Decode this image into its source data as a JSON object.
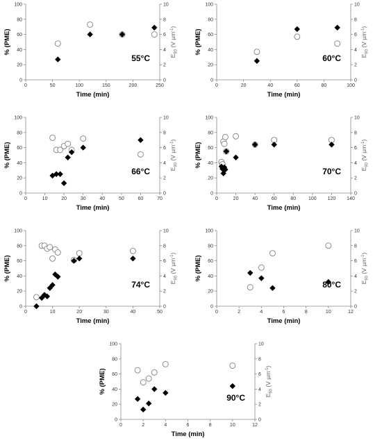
{
  "chart_data": [
    {
      "type": "scatter",
      "temperature": "55°C",
      "xlabel": "Time (min)",
      "ylabel_left": "% (PME)",
      "ylabel_right_main": "E",
      "ylabel_right_sub": "90",
      "ylabel_right_tail": " (V µm",
      "ylabel_right_sup": "-1",
      "ylabel_right_end": ")",
      "xlim": [
        0,
        250
      ],
      "xticks": [
        "0",
        "50",
        "100",
        "150",
        "200",
        "250"
      ],
      "ylim_left": [
        0,
        100
      ],
      "yticks_left": [
        "0",
        "20",
        "40",
        "60",
        "80",
        "100"
      ],
      "ylim_right": [
        0,
        10
      ],
      "yticks_right": [
        "0",
        "2",
        "4",
        "6",
        "8",
        "10"
      ],
      "grid": false,
      "series": [
        {
          "marker": "diamond-filled",
          "axis": "left",
          "points": [
            [
              60,
              27
            ],
            [
              120,
              60
            ],
            [
              180,
              60
            ],
            [
              240,
              69
            ]
          ]
        },
        {
          "marker": "circle-open",
          "axis": "right",
          "points": [
            [
              60,
              4.8
            ],
            [
              120,
              7.3
            ],
            [
              180,
              6.0
            ],
            [
              240,
              6.0
            ]
          ]
        }
      ]
    },
    {
      "type": "scatter",
      "temperature": "60°C",
      "xlabel": "Time (min)",
      "ylabel_left": "% (PME)",
      "ylabel_right_main": "E",
      "ylabel_right_sub": "90",
      "ylabel_right_tail": " (V µm",
      "ylabel_right_sup": "-1",
      "ylabel_right_end": ")",
      "xlim": [
        0,
        100
      ],
      "xticks": [
        "0",
        "20",
        "40",
        "60",
        "80",
        "100"
      ],
      "ylim_left": [
        0,
        100
      ],
      "yticks_left": [
        "0",
        "20",
        "40",
        "60",
        "80",
        "100"
      ],
      "ylim_right": [
        0,
        10
      ],
      "yticks_right": [
        "0",
        "2",
        "4",
        "6",
        "8",
        "10"
      ],
      "grid": false,
      "series": [
        {
          "marker": "diamond-filled",
          "axis": "left",
          "points": [
            [
              30,
              25
            ],
            [
              60,
              67
            ],
            [
              90,
              69
            ]
          ]
        },
        {
          "marker": "circle-open",
          "axis": "right",
          "points": [
            [
              30,
              3.7
            ],
            [
              60,
              5.7
            ],
            [
              90,
              4.8
            ]
          ]
        }
      ]
    },
    {
      "type": "scatter",
      "temperature": "66°C",
      "xlabel": "Time (min)",
      "ylabel_left": "% (PME)",
      "ylabel_right_main": "E",
      "ylabel_right_sub": "90",
      "ylabel_right_tail": " (V µm",
      "ylabel_right_sup": "-1",
      "ylabel_right_end": ")",
      "xlim": [
        0,
        70
      ],
      "xticks": [
        "0",
        "10",
        "20",
        "30",
        "40",
        "50",
        "60",
        "70"
      ],
      "ylim_left": [
        0,
        100
      ],
      "yticks_left": [
        "0",
        "20",
        "40",
        "60",
        "80",
        "100"
      ],
      "ylim_right": [
        0,
        10
      ],
      "yticks_right": [
        "0",
        "2",
        "4",
        "6",
        "8",
        "10"
      ],
      "grid": false,
      "series": [
        {
          "marker": "diamond-filled",
          "axis": "left",
          "points": [
            [
              14,
              23
            ],
            [
              16,
              25
            ],
            [
              18,
              25
            ],
            [
              20,
              13
            ],
            [
              22,
              47
            ],
            [
              24,
              54
            ],
            [
              30,
              60
            ],
            [
              60,
              70
            ]
          ]
        },
        {
          "marker": "circle-open",
          "axis": "right",
          "points": [
            [
              14,
              7.3
            ],
            [
              16,
              5.7
            ],
            [
              18,
              5.7
            ],
            [
              20,
              6.2
            ],
            [
              22,
              6.5
            ],
            [
              24,
              5.7
            ],
            [
              30,
              7.2
            ],
            [
              60,
              5.1
            ]
          ]
        }
      ]
    },
    {
      "type": "scatter",
      "temperature": "70°C",
      "xlabel": "Time (min)",
      "ylabel_left": "% (PME)",
      "ylabel_right_main": "E",
      "ylabel_right_sub": "90",
      "ylabel_right_tail": " (V µm",
      "ylabel_right_sup": "-1",
      "ylabel_right_end": ")",
      "xlim": [
        0,
        140
      ],
      "xticks": [
        "0",
        "20",
        "40",
        "60",
        "80",
        "100",
        "120",
        "140"
      ],
      "ylim_left": [
        0,
        100
      ],
      "yticks_left": [
        "0",
        "20",
        "40",
        "60",
        "80",
        "100"
      ],
      "ylim_right": [
        0,
        10
      ],
      "yticks_right": [
        "0",
        "2",
        "4",
        "6",
        "8",
        "10"
      ],
      "grid": false,
      "series": [
        {
          "marker": "diamond-filled",
          "axis": "left",
          "points": [
            [
              5,
              35
            ],
            [
              6,
              32
            ],
            [
              7,
              26
            ],
            [
              8,
              34
            ],
            [
              9,
              31
            ],
            [
              10,
              55
            ],
            [
              20,
              47
            ],
            [
              40,
              64
            ],
            [
              60,
              64
            ],
            [
              120,
              64
            ]
          ]
        },
        {
          "marker": "circle-open",
          "axis": "right",
          "points": [
            [
              5,
              4.1
            ],
            [
              6,
              3.8
            ],
            [
              7,
              6.8
            ],
            [
              8,
              6.5
            ],
            [
              9,
              7.4
            ],
            [
              10,
              5.5
            ],
            [
              20,
              7.5
            ],
            [
              40,
              6.4
            ],
            [
              60,
              7.0
            ],
            [
              120,
              7.0
            ]
          ]
        }
      ]
    },
    {
      "type": "scatter",
      "temperature": "74°C",
      "xlabel": "Time (min)",
      "ylabel_left": "% (PME)",
      "ylabel_right_main": "E",
      "ylabel_right_sub": "90",
      "ylabel_right_tail": " (V µm",
      "ylabel_right_sup": "-1",
      "ylabel_right_end": ")",
      "xlim": [
        0,
        50
      ],
      "xticks": [
        "0",
        "10",
        "20",
        "30",
        "40",
        "50"
      ],
      "ylim_left": [
        0,
        100
      ],
      "yticks_left": [
        "0",
        "20",
        "40",
        "60",
        "80",
        "100"
      ],
      "ylim_right": [
        0,
        10
      ],
      "yticks_right": [
        "0",
        "2",
        "4",
        "6",
        "8",
        "10"
      ],
      "grid": false,
      "series": [
        {
          "marker": "diamond-filled",
          "axis": "left",
          "points": [
            [
              4,
              0
            ],
            [
              6,
              11
            ],
            [
              7,
              15
            ],
            [
              8,
              13
            ],
            [
              9,
              24
            ],
            [
              10,
              28
            ],
            [
              11,
              42
            ],
            [
              12,
              39
            ],
            [
              18,
              60
            ],
            [
              20,
              63
            ],
            [
              40,
              63
            ]
          ]
        },
        {
          "marker": "circle-open",
          "axis": "right",
          "points": [
            [
              4,
              1.2
            ],
            [
              6,
              8.0
            ],
            [
              7,
              8.0
            ],
            [
              8,
              7.6
            ],
            [
              9,
              7.8
            ],
            [
              10,
              6.3
            ],
            [
              11,
              7.5
            ],
            [
              12,
              7.1
            ],
            [
              18,
              6.1
            ],
            [
              20,
              7.0
            ],
            [
              40,
              7.3
            ]
          ]
        }
      ]
    },
    {
      "type": "scatter",
      "temperature": "80°C",
      "xlabel": "Time (min)",
      "ylabel_left": "% (PME)",
      "ylabel_right_main": "E",
      "ylabel_right_sub": "90",
      "ylabel_right_tail": " (V µm",
      "ylabel_right_sup": "-1",
      "ylabel_right_end": ")",
      "xlim": [
        0,
        12
      ],
      "xticks": [
        "0",
        "2",
        "4",
        "6",
        "8",
        "10",
        "12"
      ],
      "ylim_left": [
        0,
        100
      ],
      "yticks_left": [
        "0",
        "20",
        "40",
        "60",
        "80",
        "100"
      ],
      "ylim_right": [
        0,
        10
      ],
      "yticks_right": [
        "0",
        "2",
        "4",
        "6",
        "8",
        "10"
      ],
      "grid": false,
      "series": [
        {
          "marker": "diamond-filled",
          "axis": "left",
          "points": [
            [
              3,
              44
            ],
            [
              4,
              37
            ],
            [
              5,
              24
            ],
            [
              10,
              32
            ]
          ]
        },
        {
          "marker": "circle-open",
          "axis": "right",
          "points": [
            [
              3,
              2.5
            ],
            [
              4,
              5.1
            ],
            [
              5,
              7.0
            ],
            [
              10,
              8.0
            ]
          ]
        }
      ]
    },
    {
      "type": "scatter",
      "temperature": "90°C",
      "xlabel": "Time (min)",
      "ylabel_left": "% (PME)",
      "ylabel_right_main": "E",
      "ylabel_right_sub": "90",
      "ylabel_right_tail": " (V µm",
      "ylabel_right_sup": "-1",
      "ylabel_right_end": ")",
      "xlim": [
        0,
        12
      ],
      "xticks": [
        "0",
        "2",
        "4",
        "6",
        "8",
        "10",
        "12"
      ],
      "ylim_left": [
        0,
        100
      ],
      "yticks_left": [
        "0",
        "20",
        "40",
        "60",
        "80",
        "100"
      ],
      "ylim_right": [
        0,
        10
      ],
      "yticks_right": [
        "0",
        "2",
        "4",
        "6",
        "8",
        "10"
      ],
      "grid": false,
      "series": [
        {
          "marker": "diamond-filled",
          "axis": "left",
          "points": [
            [
              1.5,
              27
            ],
            [
              2,
              13
            ],
            [
              2.5,
              21
            ],
            [
              3,
              40
            ],
            [
              4,
              35
            ],
            [
              10,
              44
            ]
          ]
        },
        {
          "marker": "circle-open",
          "axis": "right",
          "points": [
            [
              1.5,
              6.5
            ],
            [
              2,
              4.9
            ],
            [
              2.5,
              5.4
            ],
            [
              3,
              6.2
            ],
            [
              4,
              7.3
            ],
            [
              10,
              7.1
            ]
          ]
        }
      ]
    }
  ]
}
